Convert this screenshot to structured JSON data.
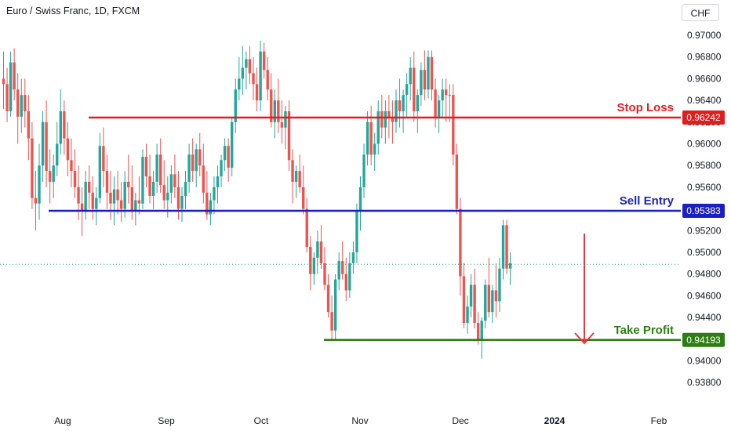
{
  "header": {
    "title": "Euro / Swiss Franc, 1D, FXCM",
    "currency": "CHF"
  },
  "colors": {
    "up": "#26a69a",
    "down": "#ef5350",
    "stop": "#e01e1e",
    "entry": "#1b1fc2",
    "target": "#2e7d14",
    "current": "#26a69a",
    "arrow": "#ef3340"
  },
  "chart_data": {
    "type": "candlestick",
    "title": "Euro / Swiss Franc, 1D, FXCM",
    "y_tick_labels": [
      "0.97000",
      "0.96800",
      "0.96600",
      "0.96400",
      "0.96200",
      "0.96000",
      "0.95800",
      "0.95600",
      "0.95400",
      "0.95200",
      "0.95000",
      "0.94800",
      "0.94600",
      "0.94400",
      "0.94200",
      "0.94000",
      "0.93800"
    ],
    "x_tick_labels": [
      "Aug",
      "Sep",
      "Oct",
      "Nov",
      "Dec",
      "2024",
      "Feb"
    ],
    "ylim": [
      0.9372,
      0.972
    ],
    "levels": [
      {
        "name": "Stop Loss",
        "value": 0.96242,
        "label": "0.96242",
        "color_key": "stop"
      },
      {
        "name": "Sell Entry",
        "value": 0.95383,
        "label": "0.95383",
        "color_key": "entry"
      },
      {
        "name": "Take Profit",
        "value": 0.94193,
        "label": "0.94193",
        "color_key": "target"
      }
    ],
    "current_price": 0.9489,
    "candles": [
      [
        0.966,
        0.9685,
        0.9632,
        0.9655
      ],
      [
        0.9655,
        0.967,
        0.962,
        0.963
      ],
      [
        0.963,
        0.9685,
        0.9625,
        0.9675
      ],
      [
        0.9675,
        0.9688,
        0.964,
        0.965
      ],
      [
        0.965,
        0.9665,
        0.96,
        0.9625
      ],
      [
        0.9625,
        0.966,
        0.961,
        0.9645
      ],
      [
        0.9645,
        0.966,
        0.9615,
        0.963
      ],
      [
        0.963,
        0.9645,
        0.9585,
        0.9605
      ],
      [
        0.9605,
        0.962,
        0.954,
        0.955
      ],
      [
        0.955,
        0.9575,
        0.952,
        0.9545
      ],
      [
        0.9545,
        0.96,
        0.953,
        0.958
      ],
      [
        0.958,
        0.963,
        0.9565,
        0.962
      ],
      [
        0.962,
        0.964,
        0.956,
        0.9575
      ],
      [
        0.9575,
        0.9595,
        0.9545,
        0.9565
      ],
      [
        0.9565,
        0.959,
        0.955,
        0.958
      ],
      [
        0.958,
        0.962,
        0.957,
        0.96
      ],
      [
        0.96,
        0.965,
        0.959,
        0.963
      ],
      [
        0.963,
        0.964,
        0.959,
        0.9605
      ],
      [
        0.9605,
        0.962,
        0.957,
        0.9585
      ],
      [
        0.9585,
        0.9605,
        0.956,
        0.9575
      ],
      [
        0.9575,
        0.9595,
        0.955,
        0.956
      ],
      [
        0.956,
        0.958,
        0.953,
        0.9545
      ],
      [
        0.9545,
        0.956,
        0.9515,
        0.9538
      ],
      [
        0.9538,
        0.9575,
        0.953,
        0.9565
      ],
      [
        0.9565,
        0.958,
        0.954,
        0.9555
      ],
      [
        0.9555,
        0.957,
        0.953,
        0.954
      ],
      [
        0.954,
        0.956,
        0.9525,
        0.955
      ],
      [
        0.955,
        0.961,
        0.9545,
        0.9598
      ],
      [
        0.9598,
        0.9615,
        0.956,
        0.9575
      ],
      [
        0.9575,
        0.959,
        0.954,
        0.9555
      ],
      [
        0.9555,
        0.9575,
        0.953,
        0.9545
      ],
      [
        0.9545,
        0.957,
        0.9525,
        0.9558
      ],
      [
        0.9558,
        0.9575,
        0.9535,
        0.9548
      ],
      [
        0.9548,
        0.9565,
        0.9528,
        0.954
      ],
      [
        0.954,
        0.9575,
        0.9532,
        0.9565
      ],
      [
        0.9565,
        0.959,
        0.9545,
        0.956
      ],
      [
        0.956,
        0.958,
        0.953,
        0.9538
      ],
      [
        0.9538,
        0.9555,
        0.9525,
        0.9548
      ],
      [
        0.9548,
        0.957,
        0.9535,
        0.9545
      ],
      [
        0.9545,
        0.9595,
        0.954,
        0.9588
      ],
      [
        0.9588,
        0.96,
        0.956,
        0.957
      ],
      [
        0.957,
        0.959,
        0.9545,
        0.9552
      ],
      [
        0.9552,
        0.9575,
        0.954,
        0.9565
      ],
      [
        0.9565,
        0.96,
        0.9555,
        0.959
      ],
      [
        0.959,
        0.9605,
        0.9555,
        0.9562
      ],
      [
        0.9562,
        0.9585,
        0.954,
        0.9548
      ],
      [
        0.9548,
        0.957,
        0.9532,
        0.9555
      ],
      [
        0.9555,
        0.958,
        0.9545,
        0.9572
      ],
      [
        0.9572,
        0.959,
        0.955,
        0.956
      ],
      [
        0.956,
        0.9575,
        0.953,
        0.954
      ],
      [
        0.954,
        0.956,
        0.9528,
        0.9552
      ],
      [
        0.9552,
        0.9575,
        0.954,
        0.9565
      ],
      [
        0.9565,
        0.96,
        0.9555,
        0.959
      ],
      [
        0.959,
        0.9605,
        0.9565,
        0.9575
      ],
      [
        0.9575,
        0.96,
        0.956,
        0.9595
      ],
      [
        0.9595,
        0.961,
        0.957,
        0.958
      ],
      [
        0.958,
        0.96,
        0.9545,
        0.9555
      ],
      [
        0.9555,
        0.9575,
        0.953,
        0.9535
      ],
      [
        0.9535,
        0.9555,
        0.9525,
        0.9548
      ],
      [
        0.9548,
        0.957,
        0.9535,
        0.956
      ],
      [
        0.956,
        0.958,
        0.9545,
        0.957
      ],
      [
        0.957,
        0.959,
        0.956,
        0.9585
      ],
      [
        0.9585,
        0.9605,
        0.9575,
        0.9598
      ],
      [
        0.9598,
        0.9605,
        0.9565,
        0.9578
      ],
      [
        0.9578,
        0.9625,
        0.957,
        0.962
      ],
      [
        0.962,
        0.966,
        0.961,
        0.965
      ],
      [
        0.965,
        0.968,
        0.964,
        0.966
      ],
      [
        0.966,
        0.969,
        0.9645,
        0.967
      ],
      [
        0.967,
        0.9685,
        0.965,
        0.9678
      ],
      [
        0.9678,
        0.969,
        0.9655,
        0.9665
      ],
      [
        0.9665,
        0.968,
        0.964,
        0.9655
      ],
      [
        0.9655,
        0.967,
        0.963,
        0.964
      ],
      [
        0.964,
        0.9695,
        0.963,
        0.9685
      ],
      [
        0.9685,
        0.9693,
        0.966,
        0.9668
      ],
      [
        0.9668,
        0.968,
        0.964,
        0.965
      ],
      [
        0.965,
        0.9665,
        0.9615,
        0.962
      ],
      [
        0.962,
        0.965,
        0.9605,
        0.964
      ],
      [
        0.964,
        0.966,
        0.961,
        0.962
      ],
      [
        0.962,
        0.964,
        0.96,
        0.9615
      ],
      [
        0.9615,
        0.9635,
        0.9595,
        0.963
      ],
      [
        0.963,
        0.964,
        0.9575,
        0.9585
      ],
      [
        0.9585,
        0.9595,
        0.9545,
        0.9565
      ],
      [
        0.9565,
        0.958,
        0.955,
        0.9575
      ],
      [
        0.9575,
        0.959,
        0.9555,
        0.956
      ],
      [
        0.956,
        0.958,
        0.9535,
        0.954
      ],
      [
        0.954,
        0.955,
        0.95,
        0.9505
      ],
      [
        0.9505,
        0.9515,
        0.9465,
        0.948
      ],
      [
        0.948,
        0.95,
        0.947,
        0.9495
      ],
      [
        0.9495,
        0.952,
        0.948,
        0.951
      ],
      [
        0.951,
        0.9525,
        0.9485,
        0.949
      ],
      [
        0.949,
        0.9505,
        0.9465,
        0.947
      ],
      [
        0.947,
        0.948,
        0.944,
        0.9445
      ],
      [
        0.9445,
        0.946,
        0.942,
        0.9428
      ],
      [
        0.9428,
        0.948,
        0.942,
        0.9475
      ],
      [
        0.9475,
        0.95,
        0.9465,
        0.9492
      ],
      [
        0.9492,
        0.951,
        0.9475,
        0.948
      ],
      [
        0.948,
        0.9495,
        0.9455,
        0.9465
      ],
      [
        0.9465,
        0.95,
        0.9458,
        0.949
      ],
      [
        0.949,
        0.951,
        0.948,
        0.95
      ],
      [
        0.95,
        0.9545,
        0.949,
        0.9538
      ],
      [
        0.9538,
        0.957,
        0.952,
        0.956
      ],
      [
        0.956,
        0.96,
        0.955,
        0.959
      ],
      [
        0.959,
        0.963,
        0.958,
        0.962
      ],
      [
        0.962,
        0.9635,
        0.958,
        0.959
      ],
      [
        0.959,
        0.961,
        0.9575,
        0.96
      ],
      [
        0.96,
        0.964,
        0.959,
        0.963
      ],
      [
        0.963,
        0.9645,
        0.9605,
        0.9615
      ],
      [
        0.9615,
        0.964,
        0.96,
        0.963
      ],
      [
        0.963,
        0.9645,
        0.9605,
        0.9625
      ],
      [
        0.9625,
        0.964,
        0.96,
        0.962
      ],
      [
        0.962,
        0.965,
        0.961,
        0.964
      ],
      [
        0.964,
        0.966,
        0.9615,
        0.963
      ],
      [
        0.963,
        0.965,
        0.961,
        0.9645
      ],
      [
        0.9645,
        0.9665,
        0.9625,
        0.9655
      ],
      [
        0.9655,
        0.968,
        0.964,
        0.967
      ],
      [
        0.967,
        0.9685,
        0.962,
        0.963
      ],
      [
        0.963,
        0.965,
        0.961,
        0.9645
      ],
      [
        0.9645,
        0.9675,
        0.9635,
        0.9668
      ],
      [
        0.9668,
        0.9686,
        0.964,
        0.965
      ],
      [
        0.965,
        0.9686,
        0.9642,
        0.968
      ],
      [
        0.968,
        0.9686,
        0.964,
        0.965
      ],
      [
        0.965,
        0.966,
        0.9615,
        0.9625
      ],
      [
        0.9625,
        0.9645,
        0.961,
        0.964
      ],
      [
        0.964,
        0.966,
        0.9625,
        0.965
      ],
      [
        0.965,
        0.966,
        0.962,
        0.9645
      ],
      [
        0.9645,
        0.9655,
        0.962,
        0.9645
      ],
      [
        0.9645,
        0.9655,
        0.958,
        0.959
      ],
      [
        0.959,
        0.96,
        0.9535,
        0.954
      ],
      [
        0.954,
        0.955,
        0.946,
        0.9478
      ],
      [
        0.9478,
        0.949,
        0.943,
        0.9435
      ],
      [
        0.9435,
        0.946,
        0.9425,
        0.945
      ],
      [
        0.945,
        0.948,
        0.944,
        0.947
      ],
      [
        0.947,
        0.9485,
        0.943,
        0.9435
      ],
      [
        0.9435,
        0.9445,
        0.9415,
        0.942
      ],
      [
        0.942,
        0.944,
        0.9402,
        0.9437
      ],
      [
        0.9437,
        0.9475,
        0.943,
        0.947
      ],
      [
        0.947,
        0.9495,
        0.944,
        0.9445
      ],
      [
        0.9445,
        0.947,
        0.9435,
        0.9465
      ],
      [
        0.9465,
        0.949,
        0.944,
        0.9455
      ],
      [
        0.9455,
        0.9495,
        0.9445,
        0.9485
      ],
      [
        0.9485,
        0.953,
        0.9475,
        0.9525
      ],
      [
        0.9525,
        0.953,
        0.948,
        0.9485
      ],
      [
        0.9485,
        0.95,
        0.947,
        0.949
      ]
    ]
  }
}
